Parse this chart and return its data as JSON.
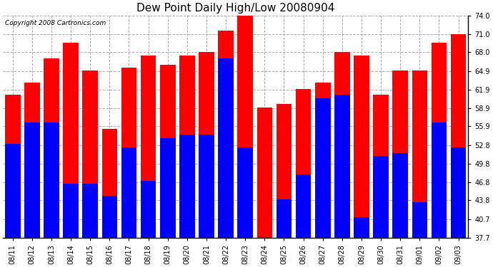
{
  "title": "Dew Point Daily High/Low 20080904",
  "copyright": "Copyright 2008 Cartronics.com",
  "dates": [
    "08/11",
    "08/12",
    "08/13",
    "08/14",
    "08/15",
    "08/16",
    "08/17",
    "08/18",
    "08/19",
    "08/20",
    "08/21",
    "08/22",
    "08/23",
    "08/24",
    "08/25",
    "08/26",
    "08/27",
    "08/28",
    "08/29",
    "08/30",
    "08/31",
    "09/01",
    "09/02",
    "09/03"
  ],
  "highs": [
    61.0,
    63.0,
    67.0,
    69.5,
    65.0,
    55.5,
    65.5,
    67.5,
    66.0,
    67.5,
    68.0,
    71.5,
    74.0,
    59.0,
    59.5,
    62.0,
    63.0,
    68.0,
    67.5,
    61.0,
    65.0,
    65.0,
    69.5,
    71.0
  ],
  "lows": [
    53.0,
    56.5,
    56.5,
    46.5,
    46.5,
    44.5,
    52.5,
    47.0,
    54.0,
    54.5,
    54.5,
    67.0,
    52.5,
    37.7,
    44.0,
    48.0,
    60.5,
    61.0,
    41.0,
    51.0,
    51.5,
    43.5,
    56.5,
    52.5
  ],
  "bar_color_high": "#ff0000",
  "bar_color_low": "#0000ff",
  "background_color": "#ffffff",
  "grid_color": "#aaaaaa",
  "yticks": [
    37.7,
    40.7,
    43.8,
    46.8,
    49.8,
    52.8,
    55.9,
    58.9,
    61.9,
    64.9,
    68.0,
    71.0,
    74.0
  ],
  "ylim": [
    37.7,
    74.0
  ],
  "title_fontsize": 11,
  "tick_fontsize": 7,
  "copyright_fontsize": 6.5
}
